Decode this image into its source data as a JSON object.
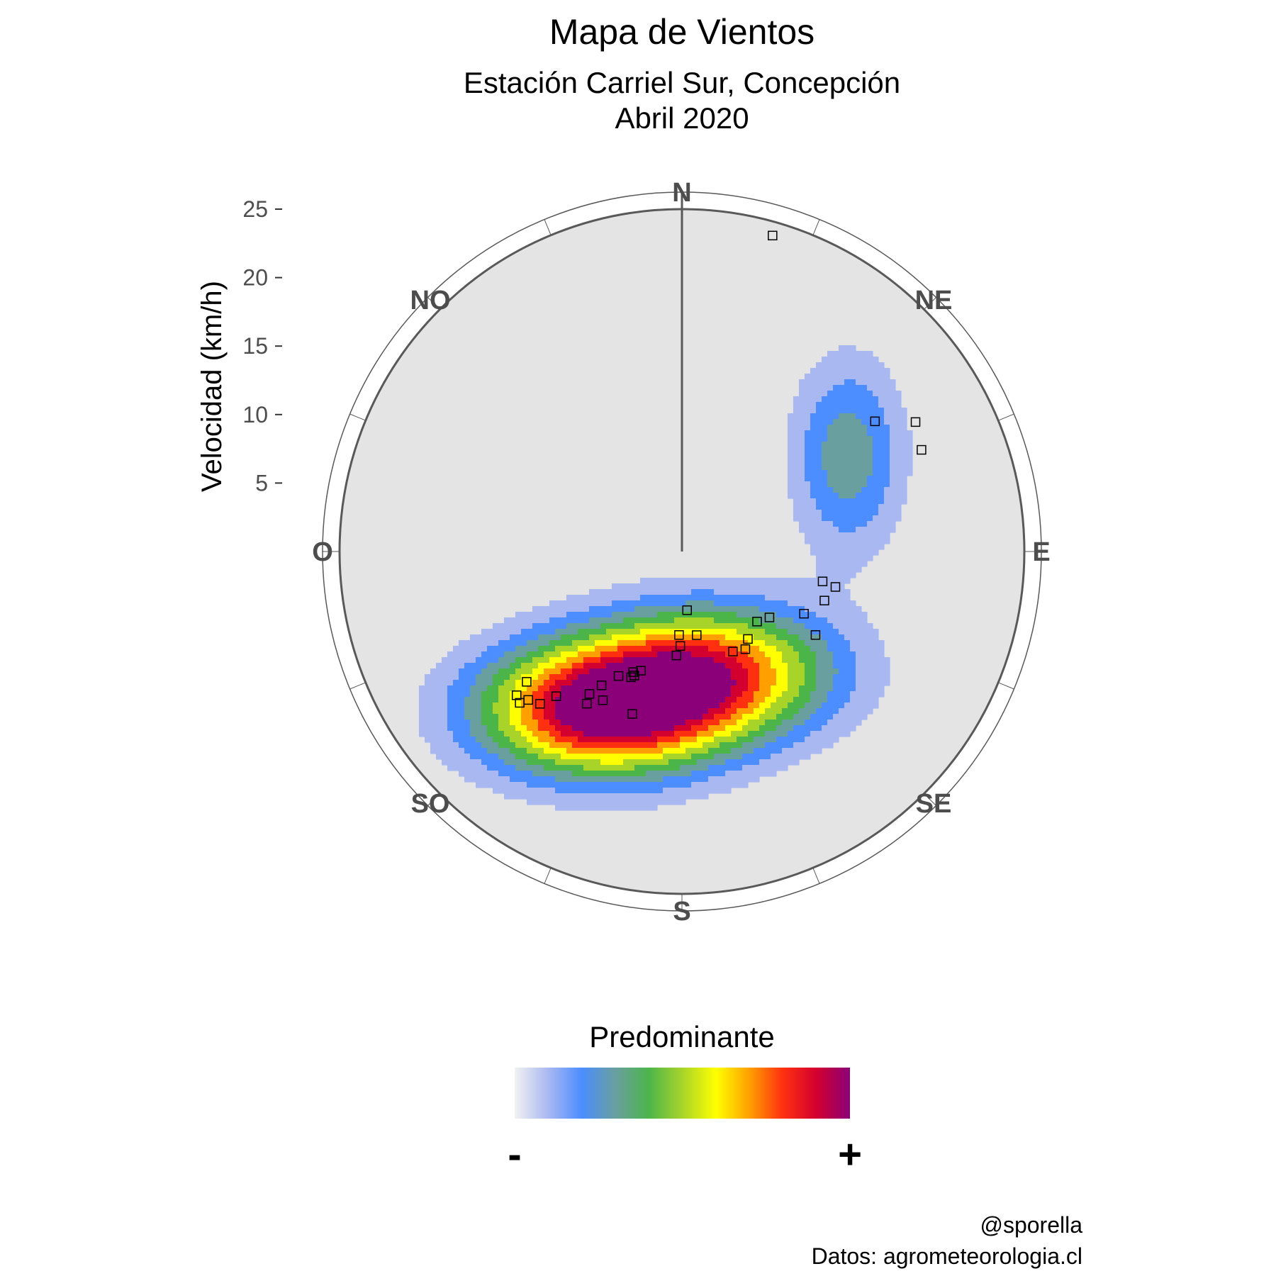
{
  "title": "Mapa de Vientos",
  "subtitle_line1": "Estación Carriel Sur, Concepción",
  "subtitle_line2": "Abril 2020",
  "chart_data": {
    "type": "polar-density",
    "ylabel": "Velocidad (km/h)",
    "r_ticks": [
      "5",
      "10",
      "15",
      "20",
      "25"
    ],
    "r_tick_values": [
      5,
      10,
      15,
      20,
      25
    ],
    "r_max": 25,
    "directions": [
      "N",
      "NE",
      "E",
      "SE",
      "S",
      "SO",
      "O",
      "NO"
    ],
    "direction_angles_deg": [
      0,
      45,
      90,
      135,
      180,
      225,
      270,
      315
    ],
    "grid_spokes_deg": 16,
    "density_peaks": [
      {
        "direction_deg": 207,
        "speed": 13,
        "weight": 1.0
      },
      {
        "direction_deg": 165,
        "speed": 9,
        "weight": 0.75
      },
      {
        "direction_deg": 60,
        "speed": 14,
        "weight": 0.35
      }
    ],
    "observations": [
      {
        "dir": 16,
        "speed": 24
      },
      {
        "dir": 56,
        "speed": 17
      },
      {
        "dir": 61,
        "speed": 19.5
      },
      {
        "dir": 67,
        "speed": 19
      },
      {
        "dir": 103,
        "speed": 11.5
      },
      {
        "dir": 102,
        "speed": 10.5
      },
      {
        "dir": 109,
        "speed": 11
      },
      {
        "dir": 117,
        "speed": 10
      },
      {
        "dir": 122,
        "speed": 11.5
      },
      {
        "dir": 127,
        "speed": 8
      },
      {
        "dir": 133,
        "speed": 7.5
      },
      {
        "dir": 143,
        "speed": 8
      },
      {
        "dir": 147,
        "speed": 8.5
      },
      {
        "dir": 153,
        "speed": 8.2
      },
      {
        "dir": 170,
        "speed": 6.2
      },
      {
        "dir": 175,
        "speed": 4.3
      },
      {
        "dir": 183,
        "speed": 7.6
      },
      {
        "dir": 182,
        "speed": 6.1
      },
      {
        "dir": 181,
        "speed": 6.9
      },
      {
        "dir": 199,
        "speed": 9.2
      },
      {
        "dir": 201,
        "speed": 9.7
      },
      {
        "dir": 202,
        "speed": 9.5
      },
      {
        "dir": 202,
        "speed": 9.9
      },
      {
        "dir": 207,
        "speed": 10.2
      },
      {
        "dir": 208,
        "speed": 12.3
      },
      {
        "dir": 211,
        "speed": 11.4
      },
      {
        "dir": 212,
        "speed": 13.1
      },
      {
        "dir": 213,
        "speed": 12.4
      },
      {
        "dir": 197,
        "speed": 12.4
      },
      {
        "dir": 223,
        "speed": 15.2
      },
      {
        "dir": 226,
        "speed": 15.6
      },
      {
        "dir": 227,
        "speed": 16.2
      },
      {
        "dir": 229,
        "speed": 16.0
      },
      {
        "dir": 221,
        "speed": 14.0
      },
      {
        "dir": 230,
        "speed": 14.8
      }
    ],
    "grid": true
  },
  "legend": {
    "title": "Predominante",
    "min_label": "-",
    "max_label": "+",
    "colors": [
      "#e4e4e4",
      "#a9b8f1",
      "#4c8dff",
      "#6a9fa0",
      "#4cb54a",
      "#a8d42a",
      "#ffff00",
      "#ffa000",
      "#ff3010",
      "#d3002f",
      "#8b0078"
    ]
  },
  "caption_line1": "@sporella",
  "caption_line2": "Datos: agrometeorologia.cl"
}
